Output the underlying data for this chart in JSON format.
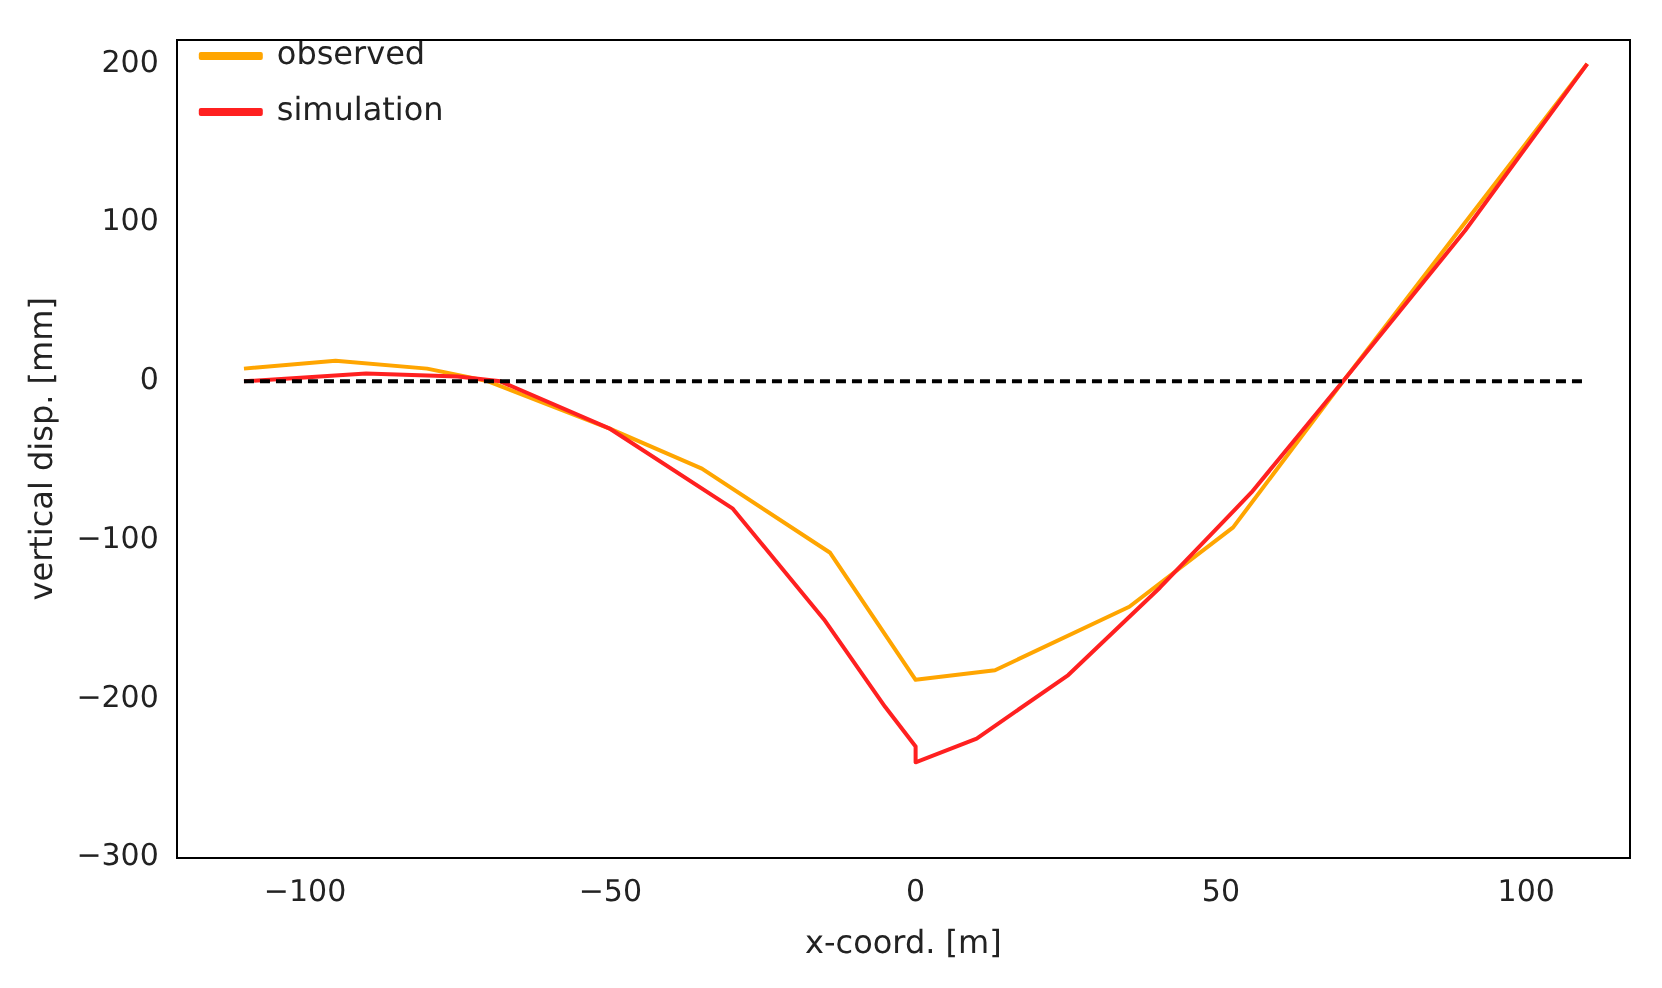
{
  "chart_data": {
    "type": "line",
    "xlabel": "x-coord. [m]",
    "ylabel": "vertical disp. [mm]",
    "xlim": [
      -121,
      117
    ],
    "ylim": [
      -300,
      215
    ],
    "xticks": [
      -100,
      -50,
      0,
      50,
      100
    ],
    "yticks": [
      -300,
      -200,
      -100,
      0,
      100,
      200
    ],
    "grid": false,
    "legend": "top left",
    "marker": "none",
    "series": [
      {
        "name": "observed",
        "color": "#ffa500",
        "x": [
          -110,
          -95,
          -80,
          -70,
          -50,
          -35,
          -14,
          0,
          13,
          35,
          52,
          70,
          90,
          110
        ],
        "values": [
          8,
          13,
          8,
          0,
          -30,
          -55,
          -108,
          -188,
          -182,
          -142,
          -92,
          0,
          100,
          200
        ]
      },
      {
        "name": "simulation",
        "color": "#ff2020",
        "x": [
          -110,
          -90,
          -75,
          -68,
          -50,
          -30,
          -15,
          -5,
          0,
          0,
          10,
          25,
          40,
          55,
          70,
          90,
          110
        ],
        "values": [
          0,
          5,
          3,
          0,
          -30,
          -80,
          -150,
          -205,
          -230,
          -240,
          -225,
          -185,
          -130,
          -70,
          0,
          95,
          200
        ]
      },
      {
        "color": "#000000",
        "line_style": "dashed",
        "x": [
          -110,
          110
        ],
        "values": [
          0,
          0
        ]
      }
    ]
  }
}
